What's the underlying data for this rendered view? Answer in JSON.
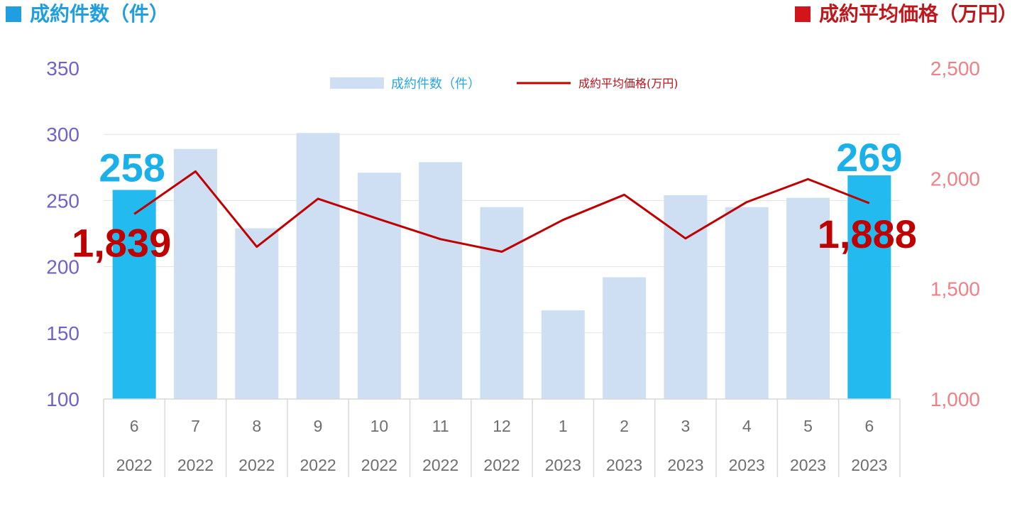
{
  "header": {
    "left_title": "成約件数（件）",
    "right_title": "成約平均価格（万円）",
    "left_color": "#1f9fe0",
    "right_color": "#d3151b"
  },
  "chart_data": {
    "type": "bar",
    "categories": [
      {
        "month": "6",
        "year": "2022"
      },
      {
        "month": "7",
        "year": "2022"
      },
      {
        "month": "8",
        "year": "2022"
      },
      {
        "month": "9",
        "year": "2022"
      },
      {
        "month": "10",
        "year": "2022"
      },
      {
        "month": "11",
        "year": "2022"
      },
      {
        "month": "12",
        "year": "2022"
      },
      {
        "month": "1",
        "year": "2023"
      },
      {
        "month": "2",
        "year": "2023"
      },
      {
        "month": "3",
        "year": "2023"
      },
      {
        "month": "4",
        "year": "2023"
      },
      {
        "month": "5",
        "year": "2023"
      },
      {
        "month": "6",
        "year": "2023"
      }
    ],
    "series": [
      {
        "name": "成約件数（件）",
        "type": "bar",
        "axis": "left",
        "color": "#cfdff3",
        "highlight_color": "#23bbef",
        "highlight_indices": [
          0,
          12
        ],
        "values": [
          258,
          289,
          229,
          301,
          271,
          279,
          245,
          167,
          192,
          254,
          245,
          252,
          269
        ]
      },
      {
        "name": "成約平均価格(万円)",
        "type": "line",
        "axis": "right",
        "color": "#c00000",
        "values": [
          1839,
          2032,
          1690,
          1908,
          1815,
          1725,
          1668,
          1812,
          1926,
          1728,
          1893,
          1997,
          1888
        ]
      }
    ],
    "y_left": {
      "min": 100,
      "max": 350,
      "ticks": [
        "100",
        "150",
        "200",
        "250",
        "300",
        "350"
      ]
    },
    "y_right": {
      "min": 1000,
      "max": 2500,
      "ticks": [
        "1,000",
        "1,500",
        "2,000",
        "2,500"
      ]
    },
    "highlights": {
      "first_count": "258",
      "last_count": "269",
      "first_price": "1,839",
      "last_price": "1,888"
    },
    "legend_position": "top-center",
    "grid": true
  }
}
